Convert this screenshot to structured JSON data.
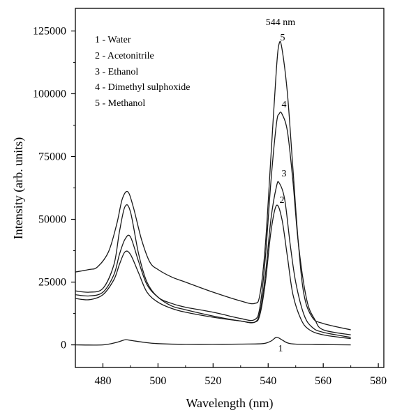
{
  "chart_data": {
    "type": "line",
    "xlabel": "Wavelength (nm)",
    "ylabel": "Intensity (arb. units)",
    "xlim": [
      470,
      582
    ],
    "ylim": [
      -9000,
      134000
    ],
    "x_ticks": [
      480,
      500,
      520,
      540,
      560,
      580
    ],
    "y_ticks": [
      0,
      25000,
      50000,
      75000,
      100000,
      125000
    ],
    "x_tick_labels": [
      "480",
      "500",
      "520",
      "540",
      "560",
      "580"
    ],
    "y_tick_labels": [
      "0",
      "25000",
      "50000",
      "75000",
      "100000",
      "125000"
    ],
    "grid": false,
    "legend_position": "top-left",
    "legend": [
      "1 - Water",
      "2 - Acetonitrile",
      "3 - Ethanol",
      "4 - Dimethyl sulphoxide",
      "5 - Methanol"
    ],
    "annotations": {
      "peak_label": "544 nm",
      "curve_labels": [
        "1",
        "2",
        "3",
        "4",
        "5"
      ]
    },
    "series": [
      {
        "name": "1",
        "x": [
          470,
          480,
          485,
          488,
          490,
          495,
          500,
          510,
          520,
          530,
          538,
          541,
          543,
          545,
          547,
          550,
          560,
          570
        ],
        "y": [
          0,
          0,
          1000,
          2000,
          1800,
          1000,
          500,
          200,
          200,
          300,
          500,
          1500,
          3000,
          2000,
          800,
          300,
          100,
          0
        ]
      },
      {
        "name": "2",
        "x": [
          470,
          475,
          480,
          484,
          486,
          488,
          490,
          493,
          496,
          500,
          505,
          510,
          520,
          530,
          535,
          537,
          539,
          541,
          543,
          545,
          547,
          549,
          552,
          555,
          560,
          570
        ],
        "y": [
          18500,
          18000,
          20000,
          26000,
          32000,
          37000,
          36000,
          28500,
          21000,
          17000,
          14500,
          13000,
          11000,
          9500,
          9000,
          12000,
          25000,
          45000,
          55500,
          50000,
          35000,
          20000,
          10000,
          6000,
          4000,
          2500
        ]
      },
      {
        "name": "3",
        "x": [
          470,
          475,
          480,
          484,
          486,
          488,
          490,
          493,
          496,
          500,
          505,
          510,
          520,
          530,
          535,
          537,
          539,
          541,
          543,
          544,
          546,
          548,
          550,
          553,
          556,
          560,
          570
        ],
        "y": [
          20000,
          19500,
          21000,
          28000,
          36000,
          42000,
          43000,
          33000,
          24000,
          19000,
          15500,
          14000,
          11500,
          9500,
          9000,
          13000,
          28000,
          50000,
          63000,
          64500,
          58000,
          40000,
          25000,
          12000,
          7000,
          5000,
          3000
        ]
      },
      {
        "name": "4",
        "x": [
          470,
          475,
          480,
          484,
          486,
          488,
          490,
          493,
          496,
          500,
          505,
          510,
          520,
          530,
          535,
          537,
          539,
          541,
          543,
          544,
          545,
          547,
          549,
          551,
          554,
          557,
          560,
          570
        ],
        "y": [
          21500,
          21000,
          22500,
          32000,
          45000,
          55000,
          53000,
          36000,
          25000,
          19000,
          16500,
          15000,
          13000,
          10500,
          10000,
          15000,
          35000,
          65000,
          88000,
          92000,
          92000,
          85000,
          65000,
          40000,
          18000,
          10000,
          6000,
          4000
        ]
      },
      {
        "name": "5",
        "x": [
          470,
          475,
          478,
          482,
          485,
          487,
          489,
          491,
          494,
          497,
          500,
          505,
          510,
          520,
          530,
          535,
          537,
          539,
          541,
          543,
          544,
          545,
          547,
          549,
          551,
          553,
          556,
          560,
          570
        ],
        "y": [
          29000,
          30000,
          31000,
          37000,
          48000,
          58000,
          61000,
          55000,
          42000,
          33000,
          30000,
          27000,
          25000,
          21000,
          17500,
          16500,
          20000,
          40000,
          75000,
          110000,
          120000,
          118000,
          100000,
          70000,
          40000,
          20000,
          11000,
          8500,
          6000
        ]
      }
    ]
  }
}
